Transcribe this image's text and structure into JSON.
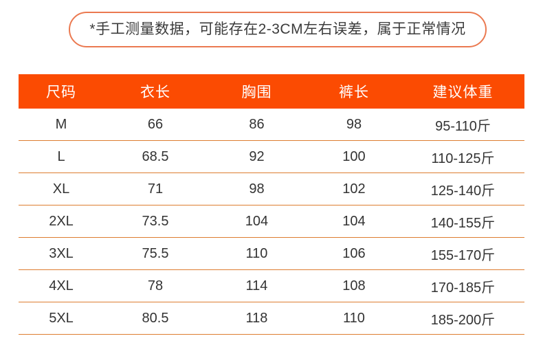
{
  "banner": {
    "text": "*手工测量数据，可能存在2-3CM左右误差，属于正常情况"
  },
  "table": {
    "headers": [
      "尺码",
      "衣长",
      "胸围",
      "裤长",
      "建议体重"
    ],
    "rows": [
      [
        "M",
        "66",
        "86",
        "98",
        "95-110斤"
      ],
      [
        "L",
        "68.5",
        "92",
        "100",
        "110-125斤"
      ],
      [
        "XL",
        "71",
        "98",
        "102",
        "125-140斤"
      ],
      [
        "2XL",
        "73.5",
        "104",
        "104",
        "140-155斤"
      ],
      [
        "3XL",
        "75.5",
        "110",
        "106",
        "155-170斤"
      ],
      [
        "4XL",
        "78",
        "114",
        "108",
        "170-185斤"
      ],
      [
        "5XL",
        "80.5",
        "118",
        "110",
        "185-200斤"
      ]
    ]
  },
  "colors": {
    "header_bg": "#fb4b02",
    "header_text": "#ffffff",
    "row_divider": "#dd7c2f",
    "banner_border": "#eb7950",
    "body_text": "#333333"
  }
}
